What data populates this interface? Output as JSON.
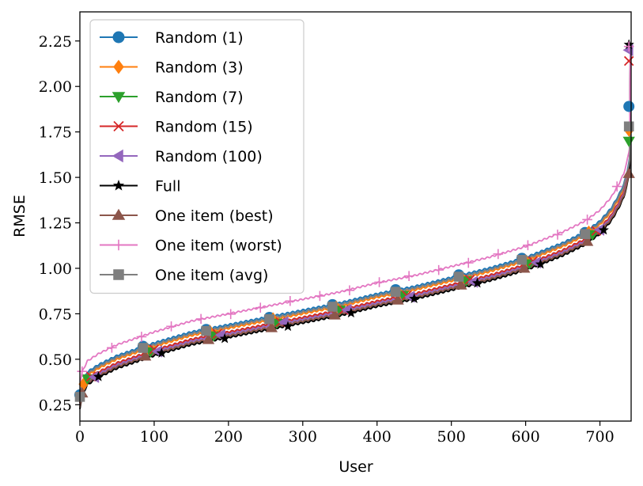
{
  "chart_data": {
    "type": "line",
    "title": "",
    "xlabel": "User",
    "ylabel": "RMSE",
    "xlim": [
      0,
      742
    ],
    "ylim": [
      0.16,
      2.41
    ],
    "xticks": [
      0,
      100,
      200,
      300,
      400,
      500,
      600,
      700
    ],
    "xtick_labels": [
      "0",
      "100",
      "200",
      "300",
      "400",
      "500",
      "600",
      "700"
    ],
    "yticks": [
      0.25,
      0.5,
      0.75,
      1.0,
      1.25,
      1.5,
      1.75,
      2.0,
      2.25
    ],
    "ytick_labels": [
      "0.25",
      "0.50",
      "0.75",
      "1.00",
      "1.25",
      "1.50",
      "1.75",
      "2.00",
      "2.25"
    ],
    "legend_position": "upper-left",
    "series": [
      {
        "name": "Random (1)",
        "color": "#1f77b4",
        "marker": "circle",
        "offset": 0.03,
        "marker_every": 85,
        "marker_start": 0,
        "end_value": 1.89
      },
      {
        "name": "Random (3)",
        "color": "#ff7f0e",
        "marker": "diamond",
        "offset": 0.01,
        "marker_every": 85,
        "marker_start": 5,
        "end_value": 1.76
      },
      {
        "name": "Random (7)",
        "color": "#2ca02c",
        "marker": "triangle-down",
        "offset": -0.01,
        "marker_every": 85,
        "marker_start": 10,
        "end_value": 1.7
      },
      {
        "name": "Random (15)",
        "color": "#d62728",
        "marker": "x",
        "offset": -0.01,
        "marker_every": 85,
        "marker_start": 15,
        "end_value": 2.14
      },
      {
        "name": "Random (100)",
        "color": "#9467bd",
        "marker": "triangle-left",
        "offset": -0.02,
        "marker_every": 85,
        "marker_start": 20,
        "end_value": 2.2
      },
      {
        "name": "Full",
        "color": "#000000",
        "marker": "star",
        "offset": -0.04,
        "marker_every": 85,
        "marker_start": 25,
        "end_value": 2.23
      },
      {
        "name": "One item (best)",
        "color": "#8c564b",
        "marker": "triangle-up",
        "offset": -0.03,
        "marker_every": 85,
        "marker_start": 3,
        "end_value": 1.52
      },
      {
        "name": "One item (worst)",
        "color": "#e377c2",
        "marker": "plus",
        "offset": 0.09,
        "marker_every": 40,
        "marker_start": 3,
        "end_value": 2.22
      },
      {
        "name": "One item (avg)",
        "color": "#7f7f7f",
        "marker": "square",
        "offset": 0.02,
        "marker_every": 85,
        "marker_start": 0,
        "end_value": 1.78
      }
    ],
    "base_curve": {
      "x": [
        0,
        3,
        10,
        25,
        50,
        100,
        150,
        200,
        250,
        300,
        350,
        400,
        450,
        500,
        550,
        600,
        650,
        680,
        700,
        715,
        725,
        732,
        736,
        739,
        741
      ],
      "y": [
        0.27,
        0.34,
        0.4,
        0.44,
        0.49,
        0.56,
        0.62,
        0.66,
        0.7,
        0.74,
        0.78,
        0.83,
        0.87,
        0.92,
        0.97,
        1.03,
        1.11,
        1.17,
        1.23,
        1.3,
        1.37,
        1.43,
        1.49,
        1.55,
        1.6
      ]
    }
  }
}
